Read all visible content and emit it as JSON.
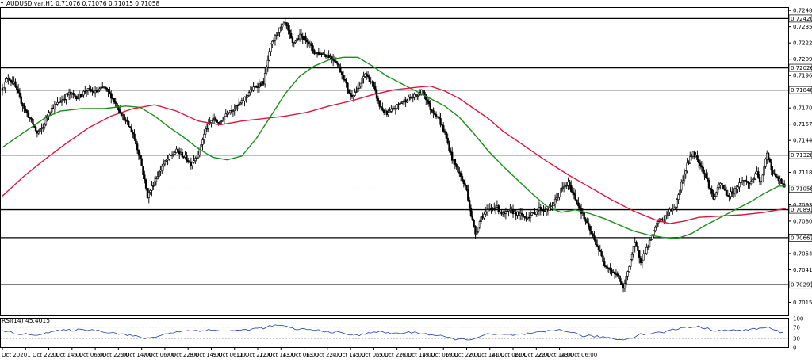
{
  "header": {
    "symbol_line": "AUDUSD.var,H1  0.71076 0.71076 0.71015 0.71058"
  },
  "rsi_panel": {
    "label": "RSI(14) 45.4015"
  },
  "colors": {
    "candle": "#000000",
    "sma_fast": "#1a8f1a",
    "sma_slow": "#e0143c",
    "level_line": "#000000",
    "rsi_line": "#1f3fa8",
    "price_tag_bg": "#ffffff"
  },
  "chart_data": [
    {
      "type": "candlestick",
      "ylim": [
        0.70045,
        0.72505
      ],
      "y_ticks": [
        "0.72485",
        "0.72355",
        "0.72225",
        "0.72095",
        "0.71965",
        "0.71835",
        "0.71705",
        "0.71575",
        "0.71445",
        "0.71315",
        "0.71189",
        "0.71058",
        "0.70930",
        "0.70800",
        "0.70670",
        "0.70540",
        "0.70410",
        "0.70280",
        "0.70150"
      ],
      "y_tick_values": [
        0.72485,
        0.72355,
        0.72225,
        0.72095,
        0.71965,
        0.71835,
        0.71705,
        0.71575,
        0.71445,
        0.71315,
        0.71189,
        0.71058,
        0.7093,
        0.708,
        0.7067,
        0.7054,
        0.7041,
        0.7028,
        0.7015
      ],
      "x_labels": [
        "Oct 2020",
        "1 Oct 22:00",
        "2 Oct 14:00",
        "5 Oct 06:00",
        "5 Oct 22:00",
        "6 Oct 14:00",
        "7 Oct 06:00",
        "7 Oct 22:00",
        "8 Oct 14:00",
        "9 Oct 06:00",
        "11 Oct 22:00",
        "12 Oct 14:00",
        "13 Oct 06:00",
        "13 Oct 22:00",
        "14 Oct 14:00",
        "15 Oct 06:00",
        "15 Oct 22:00",
        "16 Oct 14:00",
        "19 Oct 06:00",
        "19 Oct 22:00",
        "20 Oct 14:00",
        "21 Oct 06:00",
        "21 Oct 22:00",
        "22 Oct 14:00",
        "23 Oct 06:00"
      ],
      "bars_per_label": 16,
      "levels": [
        {
          "value": 0.7242,
          "label": "0.72420"
        },
        {
          "value": 0.72026,
          "label": "0.72026"
        },
        {
          "value": 0.71848,
          "label": "0.71848"
        },
        {
          "value": 0.71328,
          "label": "0.71328"
        },
        {
          "value": 0.70891,
          "label": "0.70891"
        },
        {
          "value": 0.70667,
          "label": "0.70667"
        },
        {
          "value": 0.70291,
          "label": "0.70291"
        }
      ],
      "current_price": {
        "value": 0.71058,
        "label": "0.71058"
      },
      "close_path": [
        [
          0,
          0.7186
        ],
        [
          4,
          0.7195
        ],
        [
          8,
          0.719
        ],
        [
          12,
          0.7178
        ],
        [
          16,
          0.7168
        ],
        [
          20,
          0.716
        ],
        [
          24,
          0.715
        ],
        [
          28,
          0.7155
        ],
        [
          32,
          0.7168
        ],
        [
          36,
          0.7172
        ],
        [
          40,
          0.7176
        ],
        [
          46,
          0.7182
        ],
        [
          52,
          0.7179
        ],
        [
          58,
          0.7185
        ],
        [
          64,
          0.7183
        ],
        [
          70,
          0.7187
        ],
        [
          75,
          0.718
        ],
        [
          80,
          0.717
        ],
        [
          85,
          0.716
        ],
        [
          90,
          0.715
        ],
        [
          95,
          0.713
        ],
        [
          100,
          0.71
        ],
        [
          105,
          0.7112
        ],
        [
          110,
          0.7124
        ],
        [
          115,
          0.7131
        ],
        [
          120,
          0.7136
        ],
        [
          125,
          0.7132
        ],
        [
          130,
          0.7126
        ],
        [
          135,
          0.7134
        ],
        [
          140,
          0.7153
        ],
        [
          145,
          0.7162
        ],
        [
          150,
          0.7158
        ],
        [
          155,
          0.7168
        ],
        [
          160,
          0.717
        ],
        [
          165,
          0.7175
        ],
        [
          170,
          0.7183
        ],
        [
          175,
          0.7188
        ],
        [
          180,
          0.7191
        ],
        [
          185,
          0.722
        ],
        [
          190,
          0.7232
        ],
        [
          195,
          0.7238
        ],
        [
          200,
          0.7222
        ],
        [
          205,
          0.7228
        ],
        [
          210,
          0.7225
        ],
        [
          215,
          0.7215
        ],
        [
          220,
          0.7214
        ],
        [
          225,
          0.7212
        ],
        [
          230,
          0.7208
        ],
        [
          235,
          0.7195
        ],
        [
          240,
          0.718
        ],
        [
          245,
          0.7185
        ],
        [
          250,
          0.7198
        ],
        [
          255,
          0.719
        ],
        [
          260,
          0.7172
        ],
        [
          265,
          0.7165
        ],
        [
          270,
          0.717
        ],
        [
          275,
          0.7175
        ],
        [
          280,
          0.7178
        ],
        [
          285,
          0.718
        ],
        [
          290,
          0.7184
        ],
        [
          295,
          0.717
        ],
        [
          300,
          0.7164
        ],
        [
          305,
          0.715
        ],
        [
          310,
          0.713
        ],
        [
          315,
          0.7118
        ],
        [
          320,
          0.7105
        ],
        [
          323,
          0.7085
        ],
        [
          326,
          0.707
        ],
        [
          330,
          0.7083
        ],
        [
          335,
          0.7089
        ],
        [
          340,
          0.7092
        ],
        [
          345,
          0.7085
        ],
        [
          350,
          0.7088
        ],
        [
          355,
          0.7086
        ],
        [
          360,
          0.7083
        ],
        [
          365,
          0.7085
        ],
        [
          370,
          0.709
        ],
        [
          375,
          0.7088
        ],
        [
          380,
          0.7094
        ],
        [
          385,
          0.7105
        ],
        [
          390,
          0.711
        ],
        [
          395,
          0.7098
        ],
        [
          400,
          0.7085
        ],
        [
          405,
          0.7072
        ],
        [
          410,
          0.706
        ],
        [
          415,
          0.7046
        ],
        [
          420,
          0.704
        ],
        [
          425,
          0.7035
        ],
        [
          428,
          0.7025
        ],
        [
          432,
          0.7045
        ],
        [
          436,
          0.7062
        ],
        [
          440,
          0.7048
        ],
        [
          444,
          0.7058
        ],
        [
          448,
          0.7068
        ],
        [
          452,
          0.708
        ],
        [
          456,
          0.7082
        ],
        [
          460,
          0.7088
        ],
        [
          464,
          0.7092
        ],
        [
          468,
          0.711
        ],
        [
          472,
          0.7125
        ],
        [
          476,
          0.7135
        ],
        [
          480,
          0.7128
        ],
        [
          485,
          0.7115
        ],
        [
          490,
          0.7098
        ],
        [
          495,
          0.711
        ],
        [
          500,
          0.71
        ],
        [
          505,
          0.7105
        ],
        [
          510,
          0.7113
        ],
        [
          515,
          0.711
        ],
        [
          520,
          0.7118
        ],
        [
          523,
          0.711
        ],
        [
          527,
          0.7135
        ],
        [
          531,
          0.7118
        ],
        [
          536,
          0.7112
        ],
        [
          540,
          0.7106
        ]
      ],
      "series": [
        {
          "name": "",
          "color_key": "sma_fast",
          "points": [
            [
              0,
              0.7139
            ],
            [
              10,
              0.7147
            ],
            [
              20,
              0.7155
            ],
            [
              30,
              0.7163
            ],
            [
              40,
              0.7168
            ],
            [
              55,
              0.717
            ],
            [
              70,
              0.717
            ],
            [
              85,
              0.7172
            ],
            [
              95,
              0.7171
            ],
            [
              105,
              0.7164
            ],
            [
              115,
              0.7155
            ],
            [
              125,
              0.7147
            ],
            [
              135,
              0.7138
            ],
            [
              145,
              0.7131
            ],
            [
              155,
              0.7129
            ],
            [
              165,
              0.7132
            ],
            [
              175,
              0.7146
            ],
            [
              185,
              0.7164
            ],
            [
              195,
              0.7182
            ],
            [
              205,
              0.7196
            ],
            [
              215,
              0.7204
            ],
            [
              225,
              0.7209
            ],
            [
              235,
              0.7211
            ],
            [
              245,
              0.7211
            ],
            [
              255,
              0.7204
            ],
            [
              265,
              0.7196
            ],
            [
              275,
              0.719
            ],
            [
              285,
              0.7184
            ],
            [
              295,
              0.7178
            ],
            [
              305,
              0.7172
            ],
            [
              315,
              0.7163
            ],
            [
              325,
              0.715
            ],
            [
              335,
              0.7136
            ],
            [
              345,
              0.7124
            ],
            [
              355,
              0.7113
            ],
            [
              365,
              0.7102
            ],
            [
              375,
              0.7092
            ],
            [
              385,
              0.7087
            ],
            [
              395,
              0.7089
            ],
            [
              405,
              0.7086
            ],
            [
              415,
              0.7082
            ],
            [
              425,
              0.7077
            ],
            [
              435,
              0.7072
            ],
            [
              445,
              0.7069
            ],
            [
              455,
              0.7067
            ],
            [
              465,
              0.7066
            ],
            [
              475,
              0.707
            ],
            [
              485,
              0.7077
            ],
            [
              495,
              0.7083
            ],
            [
              505,
              0.7089
            ],
            [
              515,
              0.7095
            ],
            [
              525,
              0.7102
            ],
            [
              535,
              0.7108
            ],
            [
              540,
              0.7108
            ]
          ]
        },
        {
          "name": "",
          "color_key": "sma_slow",
          "points": [
            [
              0,
              0.71
            ],
            [
              15,
              0.7116
            ],
            [
              30,
              0.713
            ],
            [
              45,
              0.7143
            ],
            [
              60,
              0.7155
            ],
            [
              75,
              0.7164
            ],
            [
              90,
              0.717
            ],
            [
              105,
              0.7173
            ],
            [
              120,
              0.7168
            ],
            [
              135,
              0.716
            ],
            [
              150,
              0.7157
            ],
            [
              165,
              0.716
            ],
            [
              180,
              0.7162
            ],
            [
              195,
              0.7164
            ],
            [
              210,
              0.7167
            ],
            [
              225,
              0.7172
            ],
            [
              240,
              0.7176
            ],
            [
              255,
              0.7181
            ],
            [
              270,
              0.7185
            ],
            [
              285,
              0.7187
            ],
            [
              295,
              0.7188
            ],
            [
              305,
              0.7184
            ],
            [
              315,
              0.7178
            ],
            [
              325,
              0.717
            ],
            [
              335,
              0.7162
            ],
            [
              345,
              0.7152
            ],
            [
              360,
              0.714
            ],
            [
              375,
              0.7128
            ],
            [
              390,
              0.7117
            ],
            [
              405,
              0.7107
            ],
            [
              420,
              0.7097
            ],
            [
              435,
              0.7088
            ],
            [
              450,
              0.7081
            ],
            [
              460,
              0.7078
            ],
            [
              470,
              0.708
            ],
            [
              480,
              0.7083
            ],
            [
              495,
              0.7084
            ],
            [
              510,
              0.7085
            ],
            [
              525,
              0.7087
            ],
            [
              540,
              0.709
            ]
          ]
        }
      ]
    },
    {
      "type": "line",
      "name": "RSI(14)",
      "ylim": [
        0,
        100
      ],
      "y_ticks": [
        "100",
        "70",
        "30",
        "0"
      ],
      "y_tick_values": [
        100,
        70,
        30,
        0
      ],
      "levels": [
        70,
        30
      ],
      "points": [
        [
          0,
          55
        ],
        [
          20,
          42
        ],
        [
          40,
          58
        ],
        [
          60,
          62
        ],
        [
          80,
          48
        ],
        [
          100,
          30
        ],
        [
          120,
          55
        ],
        [
          140,
          60
        ],
        [
          160,
          57
        ],
        [
          180,
          68
        ],
        [
          190,
          78
        ],
        [
          200,
          65
        ],
        [
          215,
          60
        ],
        [
          230,
          52
        ],
        [
          245,
          40
        ],
        [
          255,
          55
        ],
        [
          270,
          48
        ],
        [
          285,
          52
        ],
        [
          300,
          40
        ],
        [
          310,
          30
        ],
        [
          320,
          25
        ],
        [
          335,
          45
        ],
        [
          350,
          42
        ],
        [
          365,
          47
        ],
        [
          385,
          62
        ],
        [
          400,
          40
        ],
        [
          415,
          35
        ],
        [
          428,
          25
        ],
        [
          440,
          45
        ],
        [
          455,
          52
        ],
        [
          470,
          70
        ],
        [
          480,
          72
        ],
        [
          490,
          60
        ],
        [
          505,
          58
        ],
        [
          520,
          64
        ],
        [
          527,
          70
        ],
        [
          540,
          45.4
        ]
      ]
    }
  ]
}
